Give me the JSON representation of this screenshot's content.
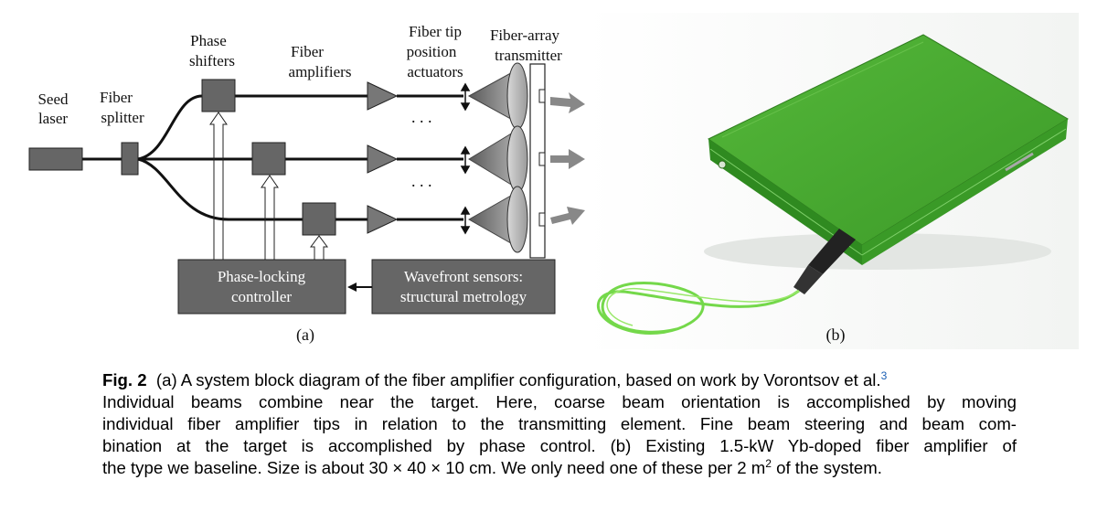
{
  "panel_a": {
    "labels": {
      "seed_laser": [
        "Seed",
        "laser"
      ],
      "fiber_splitter": [
        "Fiber",
        "splitter"
      ],
      "phase_shifters": [
        "Phase",
        "shifters"
      ],
      "fiber_amplifiers": [
        "Fiber",
        "amplifiers"
      ],
      "fiber_tip_actuators": [
        "Fiber tip",
        "position",
        "actuators"
      ],
      "fiber_array_transmitter": [
        "Fiber-array",
        "transmitter"
      ],
      "ellipsis": ". . .",
      "phase_locking_controller": [
        "Phase-locking",
        "controller"
      ],
      "wavefront_sensors": [
        "Wavefront sensors:",
        "structural metrology"
      ]
    },
    "panel_label": "(a)"
  },
  "panel_b": {
    "panel_label": "(b)",
    "colors": {
      "housing": "#3f9e2b",
      "housing_light": "#5bbf3a",
      "fiber": "#7fe04f"
    }
  },
  "caption": {
    "fig_label": "Fig. 2",
    "line1_pre": "(a) A system block diagram of the fiber amplifier configuration, based on work by Vorontsov et al.",
    "ref": "3",
    "line2": "Individual beams combine near the target. Here, coarse beam orientation is accomplished by moving",
    "line3": "individual fiber amplifier tips in relation to the transmitting element. Fine beam steering and beam com-",
    "line4": "bination at the target is accomplished by phase control. (b) Existing 1.5-kW Yb-doped fiber amplifier of",
    "line5_pre": "the type we baseline. Size is about 30 × 40 × 10 cm. We only need one of these per 2 m",
    "line5_sup": "2",
    "line5_post": " of the system."
  }
}
